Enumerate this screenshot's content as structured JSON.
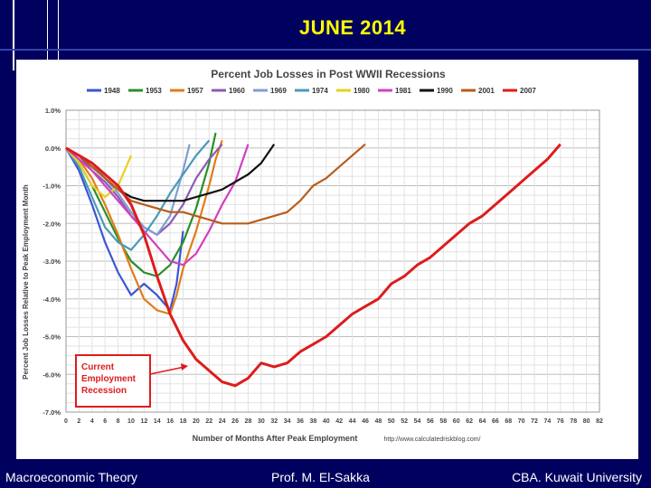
{
  "slide": {
    "title": "JUNE 2014",
    "footer_left": "Macroeconomic Theory",
    "footer_center": "Prof. M. El-Sakka",
    "footer_right": "CBA. Kuwait University"
  },
  "chart_data": {
    "type": "line",
    "title": "Percent Job Losses in Post WWII Recessions",
    "xlabel": "Number of Months After Peak Employment",
    "ylabel": "Percent Job Losses Relative to Peak Employment Month",
    "source": "http://www.calculatedriskblog.com/",
    "xlim": [
      0,
      82
    ],
    "ylim": [
      -7.0,
      1.0
    ],
    "x_ticks": [
      "0",
      "2",
      "4",
      "6",
      "8",
      "10",
      "12",
      "14",
      "16",
      "18",
      "20",
      "22",
      "24",
      "26",
      "28",
      "30",
      "32",
      "34",
      "36",
      "38",
      "40",
      "42",
      "44",
      "46",
      "48",
      "50",
      "52",
      "54",
      "56",
      "58",
      "60",
      "62",
      "64",
      "66",
      "68",
      "70",
      "72",
      "74",
      "76",
      "78",
      "80",
      "82"
    ],
    "y_ticks": [
      "1.0%",
      "0.0%",
      "-1.0%",
      "-2.0%",
      "-3.0%",
      "-4.0%",
      "-5.0%",
      "-6.0%",
      "-7.0%"
    ],
    "grid": true,
    "legend_position": "top",
    "annotation": "Current Employment Recession",
    "series": [
      {
        "name": "1948",
        "color": "#3a55d6",
        "x": [
          0,
          2,
          4,
          6,
          8,
          10,
          12,
          14,
          16,
          17,
          18
        ],
        "y": [
          0,
          -0.6,
          -1.5,
          -2.5,
          -3.3,
          -3.9,
          -3.6,
          -3.9,
          -4.3,
          -3.6,
          -2.2
        ]
      },
      {
        "name": "1953",
        "color": "#2a8f2a",
        "x": [
          0,
          2,
          4,
          6,
          8,
          10,
          12,
          14,
          16,
          18,
          20,
          22,
          23
        ],
        "y": [
          0,
          -0.4,
          -1.0,
          -1.7,
          -2.4,
          -3.0,
          -3.3,
          -3.4,
          -3.1,
          -2.5,
          -1.6,
          -0.4,
          0.4
        ]
      },
      {
        "name": "1957",
        "color": "#e07c1a",
        "x": [
          0,
          2,
          4,
          6,
          8,
          10,
          12,
          14,
          16,
          17,
          18,
          20,
          22,
          23,
          24
        ],
        "y": [
          0,
          -0.3,
          -0.8,
          -1.5,
          -2.3,
          -3.2,
          -4.0,
          -4.3,
          -4.4,
          -3.9,
          -3.2,
          -2.2,
          -1.0,
          -0.3,
          0.2
        ]
      },
      {
        "name": "1960",
        "color": "#8a5cb0",
        "x": [
          0,
          2,
          4,
          6,
          8,
          10,
          12,
          14,
          16,
          18,
          20,
          22,
          24
        ],
        "y": [
          0,
          -0.2,
          -0.6,
          -0.9,
          -1.3,
          -1.8,
          -2.1,
          -2.3,
          -2.0,
          -1.5,
          -0.8,
          -0.3,
          0.1
        ]
      },
      {
        "name": "1969",
        "color": "#7f9fd0",
        "x": [
          0,
          2,
          4,
          6,
          8,
          10,
          12,
          14,
          16,
          17,
          18,
          19
        ],
        "y": [
          0,
          -0.2,
          -0.4,
          -0.8,
          -1.2,
          -1.7,
          -2.1,
          -2.3,
          -1.8,
          -1.2,
          -0.6,
          0.1
        ]
      },
      {
        "name": "1974",
        "color": "#4a9ab8",
        "x": [
          0,
          2,
          4,
          6,
          8,
          10,
          12,
          14,
          16,
          18,
          20,
          22
        ],
        "y": [
          0,
          -0.5,
          -1.3,
          -2.1,
          -2.5,
          -2.7,
          -2.3,
          -1.8,
          -1.2,
          -0.7,
          -0.2,
          0.2
        ]
      },
      {
        "name": "1980",
        "color": "#e8d020",
        "x": [
          0,
          2,
          4,
          6,
          8,
          10
        ],
        "y": [
          0,
          -0.4,
          -1.0,
          -1.3,
          -1.0,
          -0.2
        ]
      },
      {
        "name": "1981",
        "color": "#d040c0",
        "x": [
          0,
          2,
          4,
          6,
          8,
          10,
          12,
          14,
          16,
          18,
          20,
          22,
          24,
          26,
          28
        ],
        "y": [
          0,
          -0.3,
          -0.6,
          -1.0,
          -1.4,
          -1.8,
          -2.2,
          -2.6,
          -3.0,
          -3.1,
          -2.8,
          -2.2,
          -1.5,
          -0.9,
          0.1
        ]
      },
      {
        "name": "1990",
        "color": "#111111",
        "x": [
          0,
          2,
          4,
          6,
          8,
          10,
          12,
          14,
          16,
          18,
          20,
          22,
          24,
          26,
          28,
          30,
          32
        ],
        "y": [
          0,
          -0.2,
          -0.5,
          -0.8,
          -1.1,
          -1.3,
          -1.4,
          -1.4,
          -1.4,
          -1.4,
          -1.3,
          -1.2,
          -1.1,
          -0.9,
          -0.7,
          -0.4,
          0.1
        ]
      },
      {
        "name": "2001",
        "color": "#b85c1a",
        "x": [
          0,
          2,
          4,
          6,
          8,
          10,
          12,
          14,
          16,
          18,
          20,
          22,
          24,
          26,
          28,
          30,
          32,
          34,
          36,
          38,
          40,
          42,
          44,
          46
        ],
        "y": [
          0,
          -0.2,
          -0.5,
          -0.8,
          -1.1,
          -1.4,
          -1.5,
          -1.6,
          -1.7,
          -1.7,
          -1.8,
          -1.9,
          -2.0,
          -2.0,
          -2.0,
          -1.9,
          -1.8,
          -1.7,
          -1.4,
          -1.0,
          -0.8,
          -0.5,
          -0.2,
          0.1
        ]
      },
      {
        "name": "2007",
        "color": "#dd1c1c",
        "x": [
          0,
          2,
          4,
          6,
          8,
          10,
          12,
          14,
          16,
          18,
          20,
          22,
          24,
          26,
          28,
          30,
          32,
          34,
          36,
          38,
          40,
          42,
          44,
          46,
          48,
          50,
          52,
          54,
          56,
          58,
          60,
          62,
          64,
          66,
          68,
          70,
          72,
          74,
          76
        ],
        "y": [
          0,
          -0.2,
          -0.4,
          -0.7,
          -1.0,
          -1.5,
          -2.3,
          -3.4,
          -4.4,
          -5.1,
          -5.6,
          -5.9,
          -6.2,
          -6.3,
          -6.1,
          -5.7,
          -5.8,
          -5.7,
          -5.4,
          -5.2,
          -5.0,
          -4.7,
          -4.4,
          -4.2,
          -4.0,
          -3.6,
          -3.4,
          -3.1,
          -2.9,
          -2.6,
          -2.3,
          -2.0,
          -1.8,
          -1.5,
          -1.2,
          -0.9,
          -0.6,
          -0.3,
          0.1
        ]
      }
    ]
  }
}
